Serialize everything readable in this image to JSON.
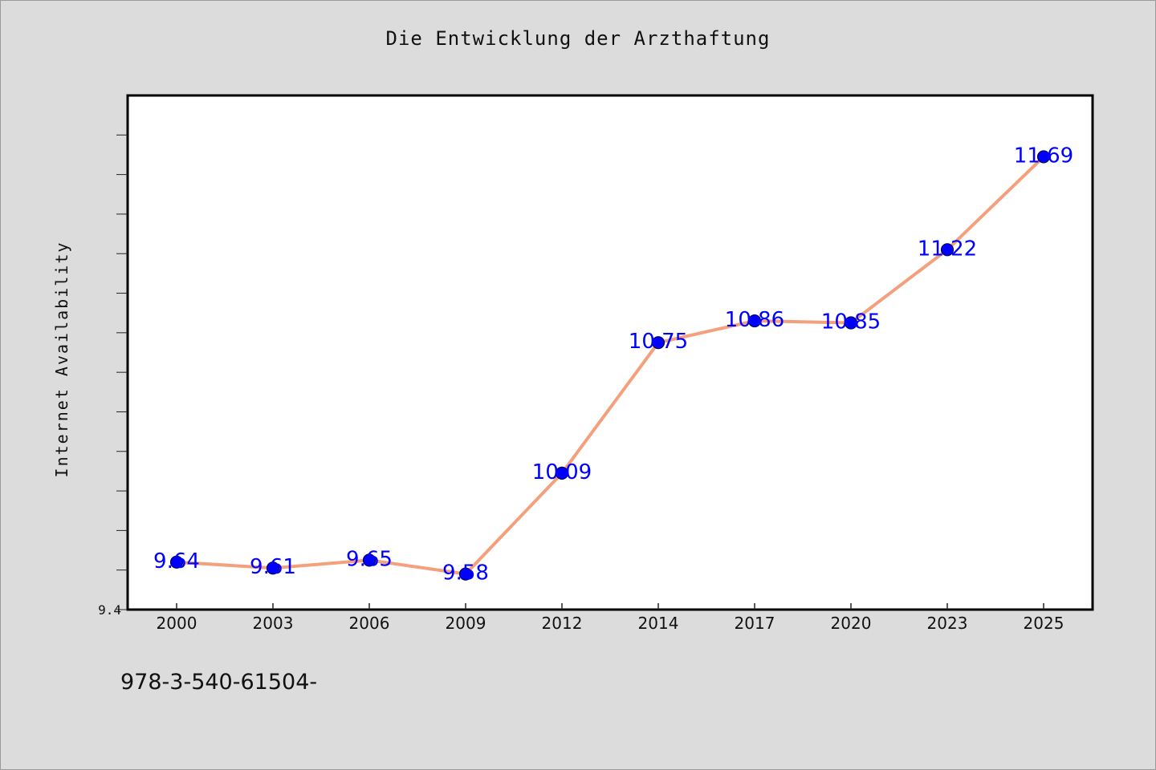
{
  "page": {
    "footer_text": "978-3-540-61504-"
  },
  "colors": {
    "background": "#dcdcdc",
    "plot_background": "#ffffff",
    "line": "#f4a07c",
    "marker": "#0000ff",
    "data_label": "#0000ff"
  },
  "chart_data": {
    "type": "line",
    "title": "Die Entwicklung der Arzthaftung",
    "xlabel": "",
    "ylabel": "Internet Availability",
    "categories": [
      "2000",
      "2003",
      "2006",
      "2009",
      "2012",
      "2014",
      "2017",
      "2020",
      "2023",
      "2025"
    ],
    "series": [
      {
        "values": [
          9.64,
          9.61,
          9.65,
          9.58,
          10.09,
          10.75,
          10.86,
          10.85,
          11.22,
          11.69
        ]
      }
    ],
    "data_labels": [
      "9.64",
      "9.61",
      "9.65",
      "9.58",
      "10.09",
      "10.75",
      "10.86",
      "10.85",
      "11.22",
      "11.69"
    ],
    "yticks": [
      {
        "value": 9.4,
        "label": "9.4"
      }
    ],
    "ylim": [
      9.4,
      12.0
    ],
    "minor_tick_step": 0.2,
    "grid": false,
    "legend": false
  }
}
